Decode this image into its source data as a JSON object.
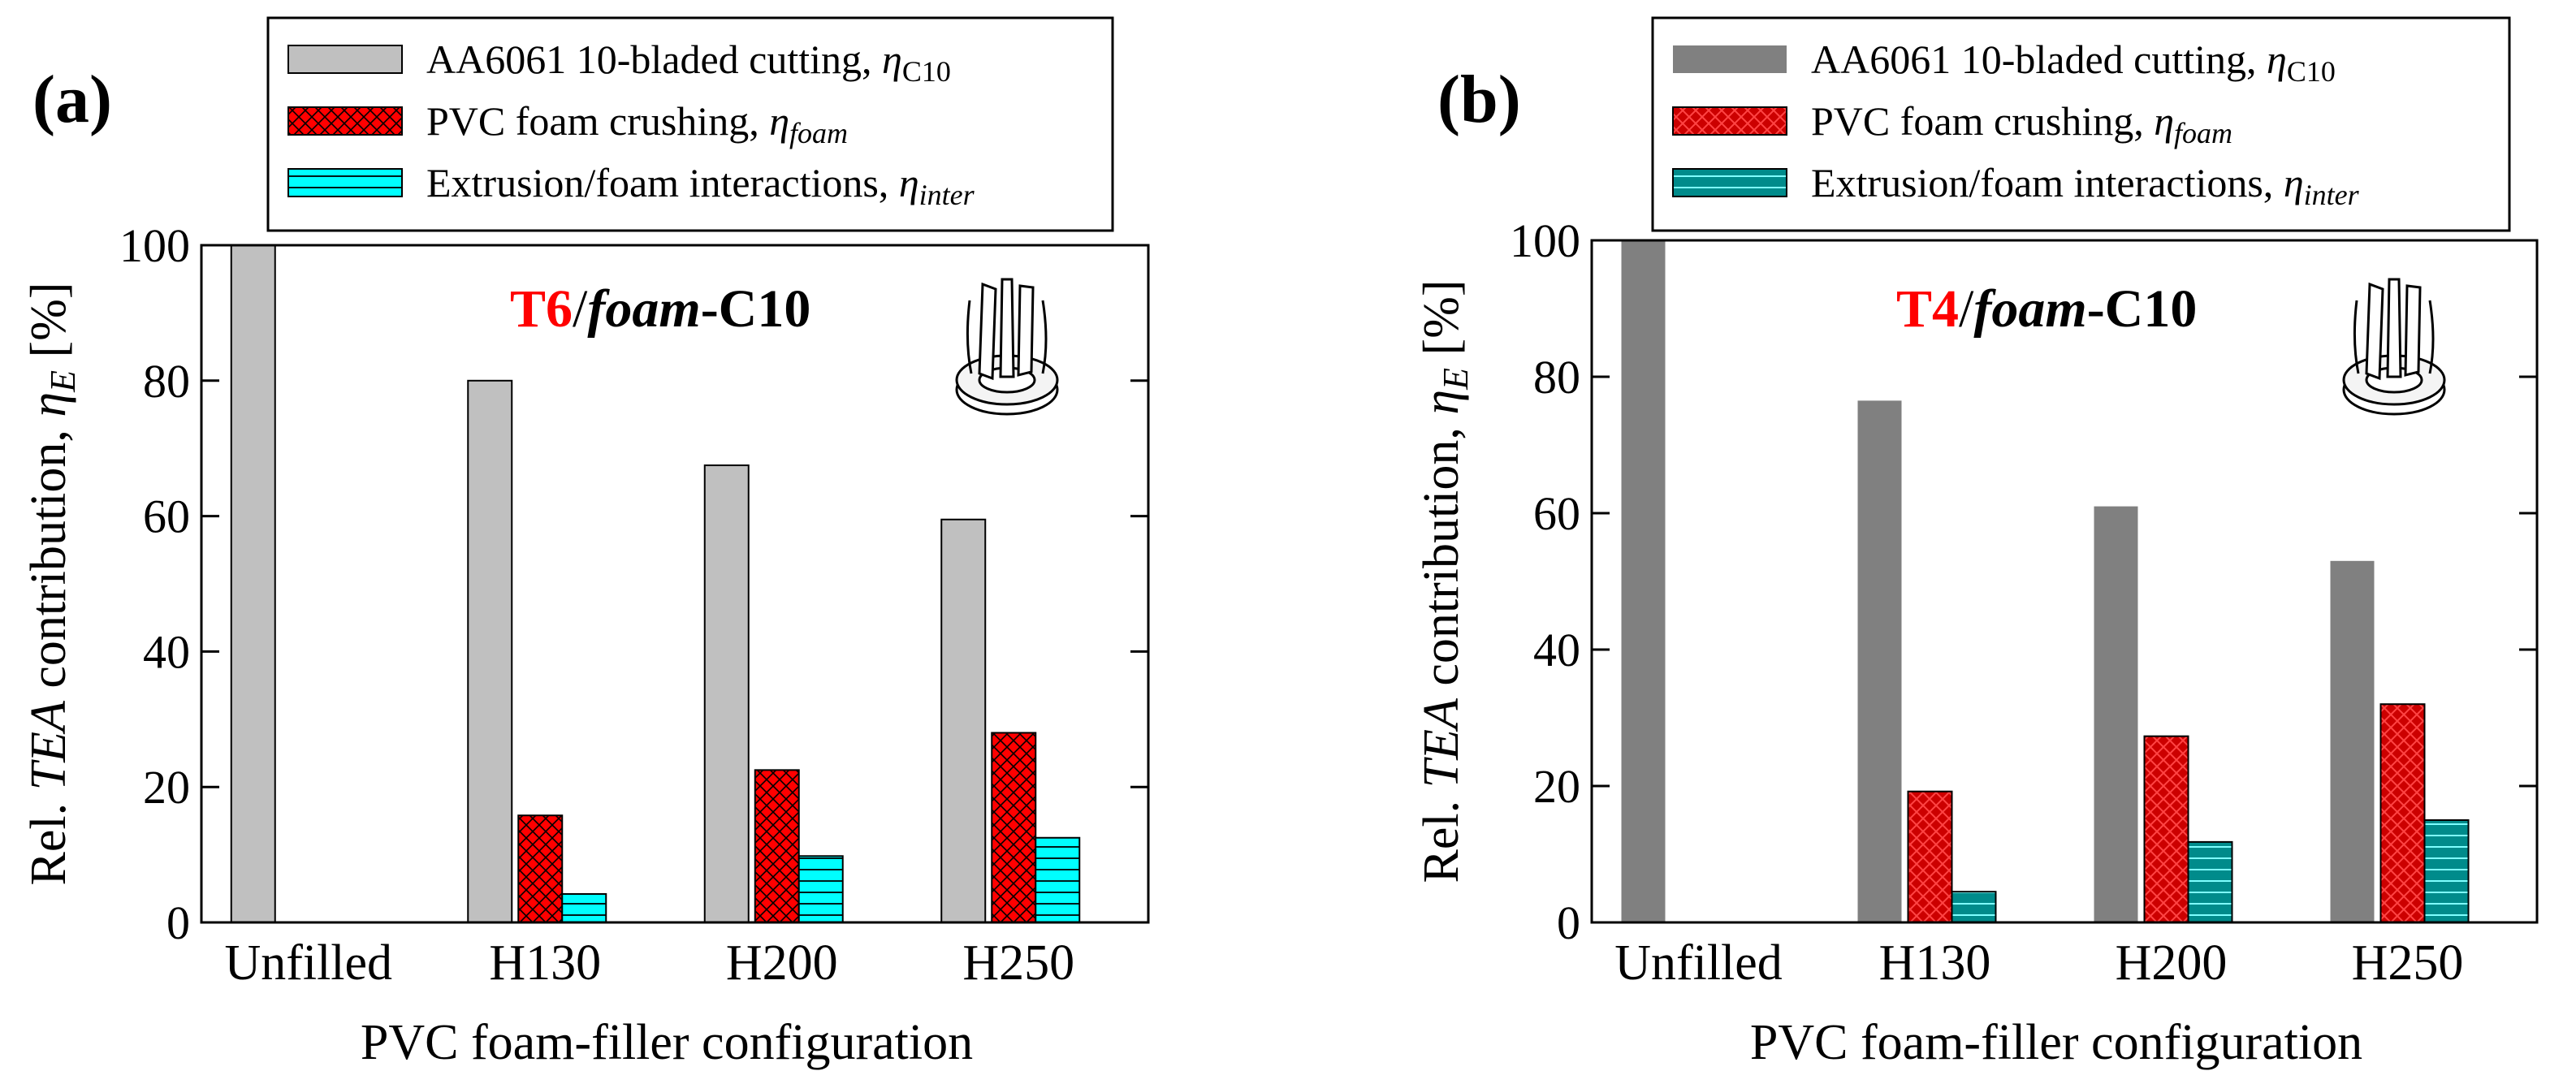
{
  "chart_data": [
    {
      "panel_label": "(a)",
      "type": "bar",
      "title_parts": [
        "T6",
        "/",
        "foam",
        "-C10"
      ],
      "ylabel_parts": [
        "Rel. ",
        "TEA",
        " contribution, ",
        "η",
        "E",
        " [%]"
      ],
      "xlabel": "PVC foam-filler configuration",
      "categories": [
        "Unfilled",
        "H130",
        "H200",
        "H250"
      ],
      "ylim": [
        0,
        100
      ],
      "yticks": [
        "0",
        "20",
        "40",
        "60",
        "80",
        "100"
      ],
      "colors": [
        "#c0c0c0",
        "#ff0000",
        "#00ffff"
      ],
      "series": [
        {
          "legend_text": "AA6061 10-bladed cutting, ",
          "legend_sym": "η",
          "legend_sub": "C10",
          "values": [
            100,
            80,
            67.5,
            59.5
          ]
        },
        {
          "legend_text": "PVC foam crushing, ",
          "legend_sym": "η",
          "legend_sub": "foam",
          "values": [
            0,
            15.8,
            22.5,
            28
          ]
        },
        {
          "legend_text": "Extrusion/foam interactions, ",
          "legend_sym": "η",
          "legend_sub": "inter",
          "values": [
            0,
            4.2,
            9.8,
            12.5
          ]
        }
      ]
    },
    {
      "panel_label": "(b)",
      "type": "bar",
      "title_parts": [
        "T4",
        "/",
        "foam",
        "-C10"
      ],
      "ylabel_parts": [
        "Rel. ",
        "TEA",
        " contribution, ",
        "η",
        "E",
        " [%]"
      ],
      "xlabel": "PVC foam-filler configuration",
      "categories": [
        "Unfilled",
        "H130",
        "H200",
        "H250"
      ],
      "ylim": [
        0,
        100
      ],
      "yticks": [
        "0",
        "20",
        "40",
        "60",
        "80",
        "100"
      ],
      "colors": [
        "#808080",
        "#cc0000",
        "#008b8b"
      ],
      "series": [
        {
          "legend_text": "AA6061 10-bladed cutting, ",
          "legend_sym": "η",
          "legend_sub": "C10",
          "values": [
            100,
            76.5,
            61,
            53
          ]
        },
        {
          "legend_text": "PVC foam crushing, ",
          "legend_sym": "η",
          "legend_sub": "foam",
          "values": [
            0,
            19.2,
            27.3,
            32
          ]
        },
        {
          "legend_text": "Extrusion/foam interactions, ",
          "legend_sym": "η",
          "legend_sub": "inter",
          "values": [
            0,
            4.5,
            11.8,
            15
          ]
        }
      ]
    }
  ]
}
